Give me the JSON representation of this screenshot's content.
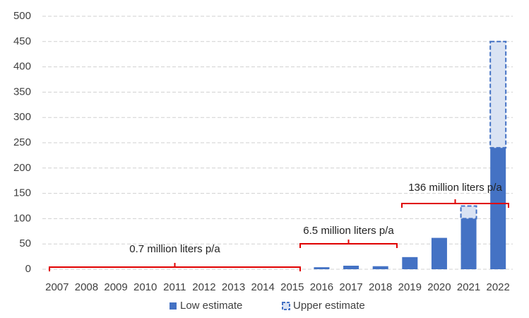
{
  "chart_data": {
    "type": "bar",
    "stacked": true,
    "categories": [
      "2007",
      "2008",
      "2009",
      "2010",
      "2011",
      "2012",
      "2013",
      "2014",
      "2015",
      "2016",
      "2017",
      "2018",
      "2019",
      "2020",
      "2021",
      "2022"
    ],
    "series": [
      {
        "name": "Low estimate",
        "color": "#4472c4",
        "values": [
          0,
          0,
          0,
          0,
          0,
          0,
          0,
          0,
          0,
          4,
          7,
          6,
          24,
          62,
          100,
          240
        ]
      },
      {
        "name": "Upper estimate",
        "color": "#dae3f3",
        "edge": "#4472c4",
        "dashed": true,
        "values": [
          null,
          null,
          null,
          null,
          null,
          null,
          null,
          null,
          null,
          null,
          null,
          null,
          null,
          null,
          25,
          210
        ]
      }
    ],
    "ylim": [
      0,
      500
    ],
    "yticks": [
      0,
      50,
      100,
      150,
      200,
      250,
      300,
      350,
      400,
      450,
      500
    ],
    "grid": true,
    "annotations": [
      "0.7 million liters p/a",
      "6.5 million liters p/a",
      "136 million liters p/a"
    ],
    "annotation_color": "#e00000",
    "legend": "bottom"
  }
}
